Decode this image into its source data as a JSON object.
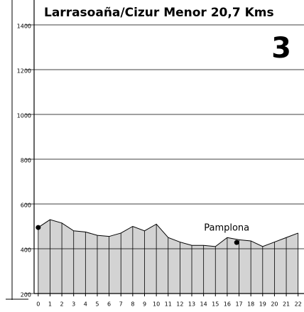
{
  "chart_data": {
    "type": "area",
    "title": "Larrasoaña/Cizur Menor 20,7 Kms",
    "stage": "3",
    "x": [
      0,
      1,
      2,
      3,
      4,
      5,
      6,
      7,
      8,
      9,
      10,
      11,
      12,
      13,
      14,
      15,
      16,
      17,
      18,
      19,
      20,
      21,
      22
    ],
    "values": [
      495,
      530,
      515,
      480,
      475,
      460,
      455,
      470,
      500,
      480,
      510,
      450,
      430,
      415,
      415,
      410,
      450,
      440,
      435,
      410,
      430,
      450,
      470
    ],
    "color": "#d3d3d3",
    "markers": [
      {
        "x": 0,
        "y": 495
      },
      {
        "x": 16.8,
        "y": 428,
        "label": "Pamplona"
      }
    ],
    "xlim": [
      -0.35,
      22.5
    ],
    "xticks": [
      0,
      1,
      2,
      3,
      4,
      5,
      6,
      7,
      8,
      9,
      10,
      11,
      12,
      13,
      14,
      15,
      16,
      17,
      18,
      19,
      20,
      21,
      22
    ],
    "ylim": [
      200,
      1400
    ],
    "yticks": [
      200,
      400,
      600,
      800,
      1000,
      1200,
      1400
    ],
    "grid": true
  }
}
